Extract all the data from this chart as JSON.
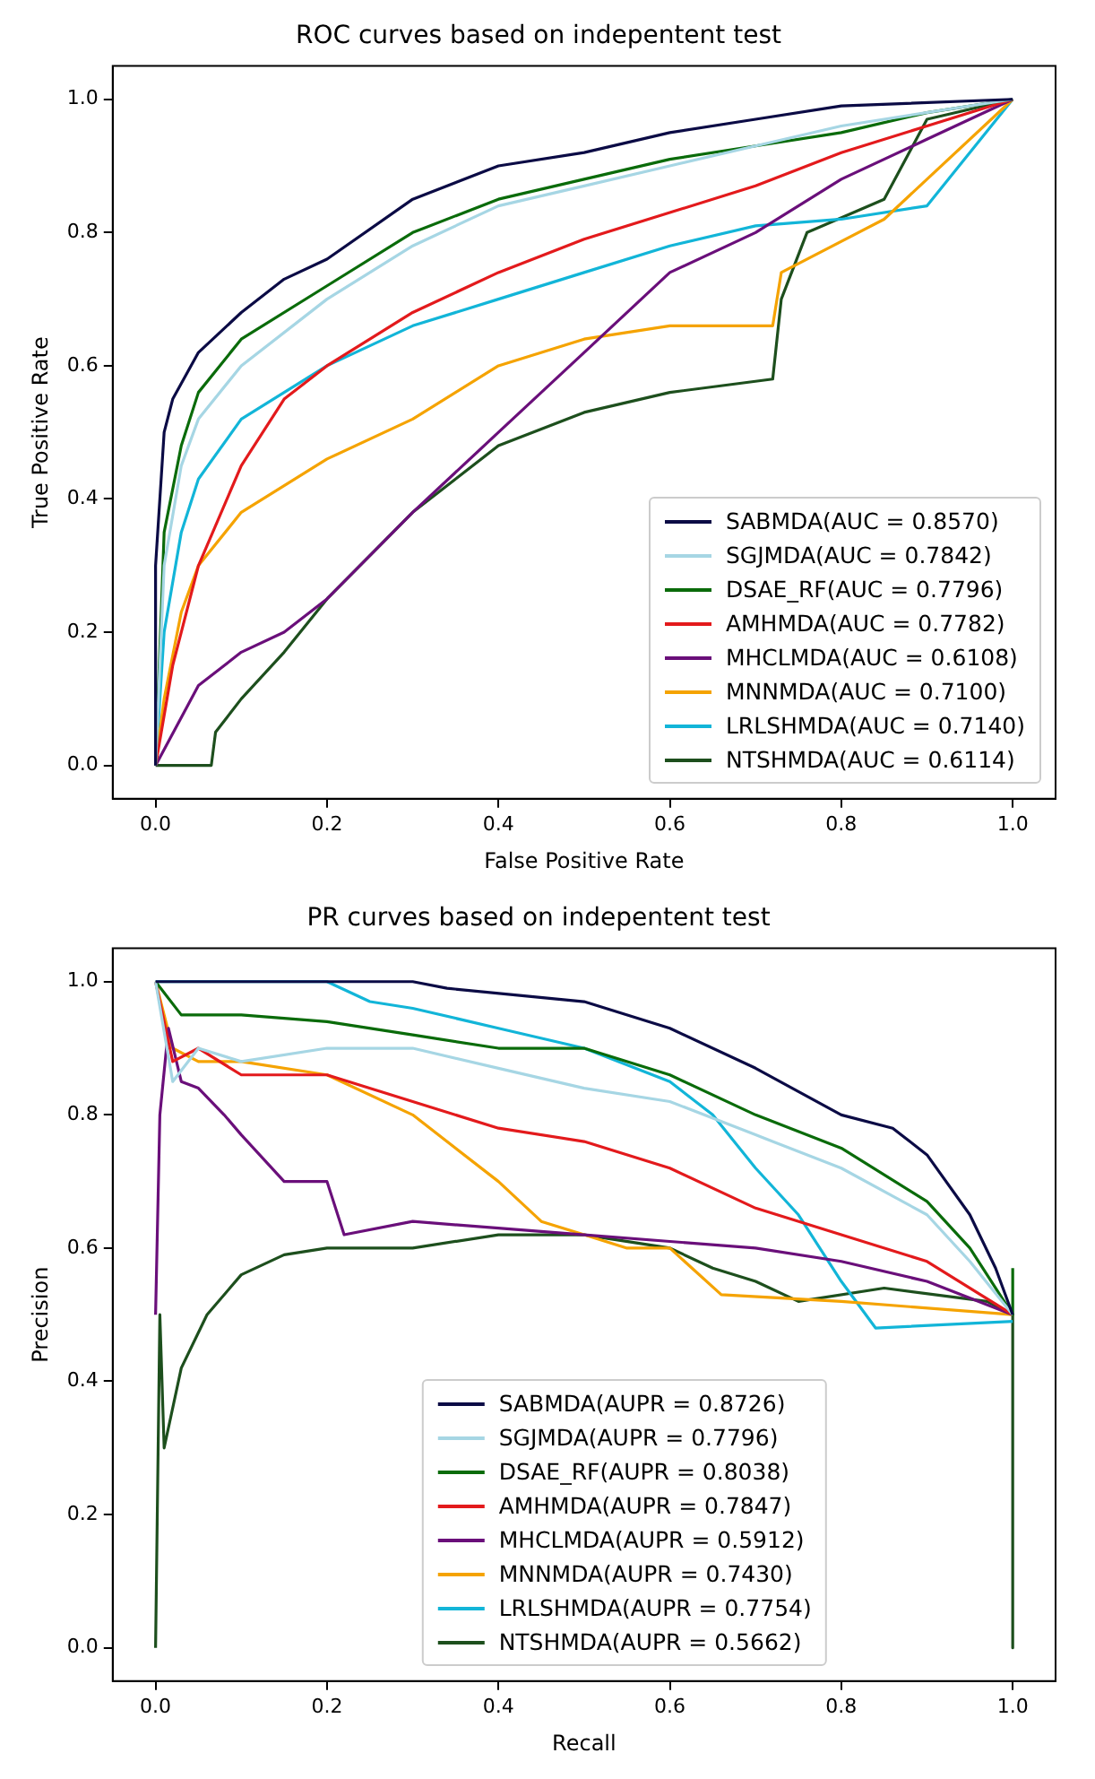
{
  "chart_data": [
    {
      "type": "line",
      "title": "ROC curves based on indepentent test",
      "xlabel": "False Positive Rate",
      "ylabel": "True Positive Rate",
      "legend": "bottom right",
      "grid": false,
      "marker": "none",
      "line_style": "solid",
      "xlim": [
        -0.05,
        1.05
      ],
      "ylim": [
        -0.05,
        1.05
      ],
      "xticks": [
        {
          "value": 0,
          "label": "0.0"
        },
        {
          "value": 0.2,
          "label": "0.2"
        },
        {
          "value": 0.4,
          "label": "0.4"
        },
        {
          "value": 0.6,
          "label": "0.6"
        },
        {
          "value": 0.8,
          "label": "0.8"
        },
        {
          "value": 1,
          "label": "1.0"
        }
      ],
      "yticks": [
        {
          "value": 0,
          "label": "0.0"
        },
        {
          "value": 0.2,
          "label": "0.2"
        },
        {
          "value": 0.4,
          "label": "0.4"
        },
        {
          "value": 0.6,
          "label": "0.6"
        },
        {
          "value": 0.8,
          "label": "0.8"
        },
        {
          "value": 1,
          "label": "1.0"
        }
      ],
      "series": [
        {
          "name": "SABMDA(AUC = 0.8570)",
          "color": "#0b0b45",
          "x": [
            0,
            0,
            0.01,
            0.02,
            0.05,
            0.1,
            0.15,
            0.2,
            0.3,
            0.4,
            0.5,
            0.6,
            0.7,
            0.8,
            1
          ],
          "values": [
            0,
            0.3,
            0.5,
            0.55,
            0.62,
            0.68,
            0.73,
            0.76,
            0.85,
            0.9,
            0.92,
            0.95,
            0.97,
            0.99,
            1
          ]
        },
        {
          "name": "SGJMDA(AUC = 0.7842)",
          "color": "#a6d6e4",
          "x": [
            0,
            0.01,
            0.03,
            0.05,
            0.1,
            0.2,
            0.3,
            0.4,
            0.5,
            0.6,
            0.7,
            0.8,
            1
          ],
          "values": [
            0,
            0.3,
            0.45,
            0.52,
            0.6,
            0.7,
            0.78,
            0.84,
            0.87,
            0.9,
            0.93,
            0.96,
            1
          ]
        },
        {
          "name": "DSAE_RF(AUC = 0.7796)",
          "color": "#0a6b0a",
          "x": [
            0,
            0.01,
            0.03,
            0.05,
            0.1,
            0.2,
            0.3,
            0.4,
            0.5,
            0.6,
            0.7,
            0.8,
            0.9,
            1
          ],
          "values": [
            0,
            0.35,
            0.48,
            0.56,
            0.64,
            0.72,
            0.8,
            0.85,
            0.88,
            0.91,
            0.93,
            0.95,
            0.98,
            1
          ]
        },
        {
          "name": "AMHMDA(AUC = 0.7782)",
          "color": "#e31a1c",
          "x": [
            0,
            0.02,
            0.05,
            0.1,
            0.15,
            0.2,
            0.3,
            0.4,
            0.5,
            0.6,
            0.7,
            0.8,
            0.9,
            1
          ],
          "values": [
            0,
            0.15,
            0.3,
            0.45,
            0.55,
            0.6,
            0.68,
            0.74,
            0.79,
            0.83,
            0.87,
            0.92,
            0.96,
            1
          ]
        },
        {
          "name": "MHCLMDA(AUC = 0.6108)",
          "color": "#6a0f7a",
          "x": [
            0,
            0.05,
            0.1,
            0.15,
            0.2,
            0.3,
            0.4,
            0.5,
            0.6,
            0.7,
            0.8,
            0.9,
            1
          ],
          "values": [
            0,
            0.12,
            0.17,
            0.2,
            0.25,
            0.38,
            0.5,
            0.62,
            0.74,
            0.8,
            0.88,
            0.94,
            1
          ]
        },
        {
          "name": "MNNMDA(AUC = 0.7100)",
          "color": "#f5a300",
          "x": [
            0,
            0.01,
            0.03,
            0.05,
            0.1,
            0.2,
            0.3,
            0.4,
            0.5,
            0.6,
            0.72,
            0.73,
            0.85,
            1
          ],
          "values": [
            0,
            0.1,
            0.23,
            0.3,
            0.38,
            0.46,
            0.52,
            0.6,
            0.64,
            0.66,
            0.66,
            0.74,
            0.82,
            1
          ]
        },
        {
          "name": "LRLSHMDA(AUC = 0.7140)",
          "color": "#12b5d8",
          "x": [
            0,
            0.01,
            0.03,
            0.05,
            0.1,
            0.2,
            0.3,
            0.4,
            0.5,
            0.6,
            0.7,
            0.8,
            0.9,
            1
          ],
          "values": [
            0,
            0.2,
            0.35,
            0.43,
            0.52,
            0.6,
            0.66,
            0.7,
            0.74,
            0.78,
            0.81,
            0.82,
            0.84,
            1
          ]
        },
        {
          "name": "NTSHMDA(AUC = 0.6114)",
          "color": "#1d4f1d",
          "x": [
            0,
            0.065,
            0.07,
            0.1,
            0.15,
            0.2,
            0.3,
            0.4,
            0.5,
            0.6,
            0.72,
            0.73,
            0.76,
            0.85,
            0.9,
            1
          ],
          "values": [
            0,
            0,
            0.05,
            0.1,
            0.17,
            0.25,
            0.38,
            0.48,
            0.53,
            0.56,
            0.58,
            0.7,
            0.8,
            0.85,
            0.97,
            1
          ]
        }
      ]
    },
    {
      "type": "line",
      "title": "PR curves based on indepentent test",
      "xlabel": "Recall",
      "ylabel": "Precision",
      "legend": "bottom",
      "grid": false,
      "marker": "none",
      "line_style": "solid",
      "xlim": [
        -0.05,
        1.05
      ],
      "ylim": [
        -0.05,
        1.05
      ],
      "xticks": [
        {
          "value": 0,
          "label": "0.0"
        },
        {
          "value": 0.2,
          "label": "0.2"
        },
        {
          "value": 0.4,
          "label": "0.4"
        },
        {
          "value": 0.6,
          "label": "0.6"
        },
        {
          "value": 0.8,
          "label": "0.8"
        },
        {
          "value": 1,
          "label": "1.0"
        }
      ],
      "yticks": [
        {
          "value": 0,
          "label": "0.0"
        },
        {
          "value": 0.2,
          "label": "0.2"
        },
        {
          "value": 0.4,
          "label": "0.4"
        },
        {
          "value": 0.6,
          "label": "0.6"
        },
        {
          "value": 0.8,
          "label": "0.8"
        },
        {
          "value": 1,
          "label": "1.0"
        }
      ],
      "series": [
        {
          "name": "SABMDA(AUPR = 0.8726)",
          "color": "#0b0b45",
          "x": [
            0,
            0.3,
            0.34,
            0.5,
            0.6,
            0.7,
            0.8,
            0.86,
            0.9,
            0.95,
            0.98,
            1
          ],
          "values": [
            1,
            1,
            0.99,
            0.97,
            0.93,
            0.87,
            0.8,
            0.78,
            0.74,
            0.65,
            0.57,
            0.5
          ]
        },
        {
          "name": "SGJMDA(AUPR = 0.7796)",
          "color": "#a6d6e4",
          "x": [
            0,
            0.02,
            0.05,
            0.1,
            0.2,
            0.3,
            0.4,
            0.5,
            0.6,
            0.7,
            0.8,
            0.9,
            0.95,
            1
          ],
          "values": [
            1,
            0.85,
            0.9,
            0.88,
            0.9,
            0.9,
            0.87,
            0.84,
            0.82,
            0.77,
            0.72,
            0.65,
            0.58,
            0.5
          ]
        },
        {
          "name": "DSAE_RF(AUPR = 0.8038)",
          "color": "#0a6b0a",
          "x": [
            0,
            0.03,
            0.1,
            0.2,
            0.3,
            0.4,
            0.5,
            0.6,
            0.7,
            0.8,
            0.9,
            0.95,
            1,
            1
          ],
          "values": [
            1,
            0.95,
            0.95,
            0.94,
            0.92,
            0.9,
            0.9,
            0.86,
            0.8,
            0.75,
            0.67,
            0.6,
            0.5,
            0.57
          ]
        },
        {
          "name": "AMHMDA(AUPR = 0.7847)",
          "color": "#e31a1c",
          "x": [
            0,
            0.02,
            0.05,
            0.1,
            0.2,
            0.3,
            0.4,
            0.5,
            0.6,
            0.7,
            0.8,
            0.9,
            1
          ],
          "values": [
            1,
            0.88,
            0.9,
            0.86,
            0.86,
            0.82,
            0.78,
            0.76,
            0.72,
            0.66,
            0.62,
            0.58,
            0.5
          ]
        },
        {
          "name": "MHCLMDA(AUPR = 0.5912)",
          "color": "#6a0f7a",
          "x": [
            0,
            0.005,
            0.015,
            0.03,
            0.05,
            0.08,
            0.1,
            0.15,
            0.2,
            0.22,
            0.3,
            0.4,
            0.5,
            0.6,
            0.7,
            0.8,
            0.9,
            1
          ],
          "values": [
            0.5,
            0.8,
            0.93,
            0.85,
            0.84,
            0.8,
            0.77,
            0.7,
            0.7,
            0.62,
            0.64,
            0.63,
            0.62,
            0.61,
            0.6,
            0.58,
            0.55,
            0.5
          ]
        },
        {
          "name": "MNNMDA(AUPR = 0.7430)",
          "color": "#f5a300",
          "x": [
            0,
            0.02,
            0.05,
            0.1,
            0.2,
            0.3,
            0.35,
            0.4,
            0.45,
            0.5,
            0.55,
            0.6,
            0.66,
            0.8,
            1
          ],
          "values": [
            1,
            0.9,
            0.88,
            0.88,
            0.86,
            0.8,
            0.75,
            0.7,
            0.64,
            0.62,
            0.6,
            0.6,
            0.53,
            0.52,
            0.5
          ]
        },
        {
          "name": "LRLSHMDA(AUPR = 0.7754)",
          "color": "#12b5d8",
          "x": [
            0,
            0.2,
            0.25,
            0.3,
            0.4,
            0.5,
            0.6,
            0.65,
            0.7,
            0.75,
            0.8,
            0.84,
            1
          ],
          "values": [
            1,
            1,
            0.97,
            0.96,
            0.93,
            0.9,
            0.85,
            0.8,
            0.72,
            0.65,
            0.55,
            0.48,
            0.49
          ]
        },
        {
          "name": "NTSHMDA(AUPR = 0.5662)",
          "color": "#1d4f1d",
          "x": [
            0,
            0.005,
            0.01,
            0.03,
            0.06,
            0.1,
            0.15,
            0.2,
            0.3,
            0.4,
            0.5,
            0.6,
            0.65,
            0.7,
            0.75,
            0.85,
            0.97,
            1,
            1
          ],
          "values": [
            0,
            0.5,
            0.3,
            0.42,
            0.5,
            0.56,
            0.59,
            0.6,
            0.6,
            0.62,
            0.62,
            0.6,
            0.57,
            0.55,
            0.52,
            0.54,
            0.52,
            0.5,
            0
          ]
        }
      ]
    }
  ]
}
